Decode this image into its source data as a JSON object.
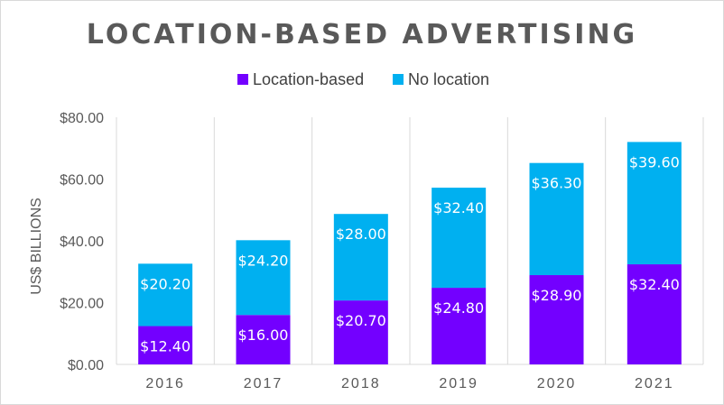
{
  "chart_data": {
    "type": "bar",
    "stacked": true,
    "title": "LOCATION-BASED ADVERTISING",
    "ylabel": "US$ BILLIONS",
    "xlabel": "",
    "categories": [
      "2016",
      "2017",
      "2018",
      "2019",
      "2020",
      "2021"
    ],
    "series": [
      {
        "name": "Location-based",
        "color": "#7300ff",
        "values": [
          12.4,
          16.0,
          20.7,
          24.8,
          28.9,
          32.4
        ],
        "labels": [
          "$12.40",
          "$16.00",
          "$20.70",
          "$24.80",
          "$28.90",
          "$32.40"
        ]
      },
      {
        "name": "No location",
        "color": "#00b0f0",
        "values": [
          20.2,
          24.2,
          28.0,
          32.4,
          36.3,
          39.6
        ],
        "labels": [
          "$20.20",
          "$24.20",
          "$28.00",
          "$32.40",
          "$36.30",
          "$39.60"
        ]
      }
    ],
    "ylim": [
      0,
      80
    ],
    "yticks": [
      0,
      20,
      40,
      60,
      80
    ],
    "ytick_labels": [
      "$0.00",
      "$20.00",
      "$40.00",
      "$60.00",
      "$80.00"
    ],
    "grid": "vertical category separators",
    "legend": "top-center"
  }
}
